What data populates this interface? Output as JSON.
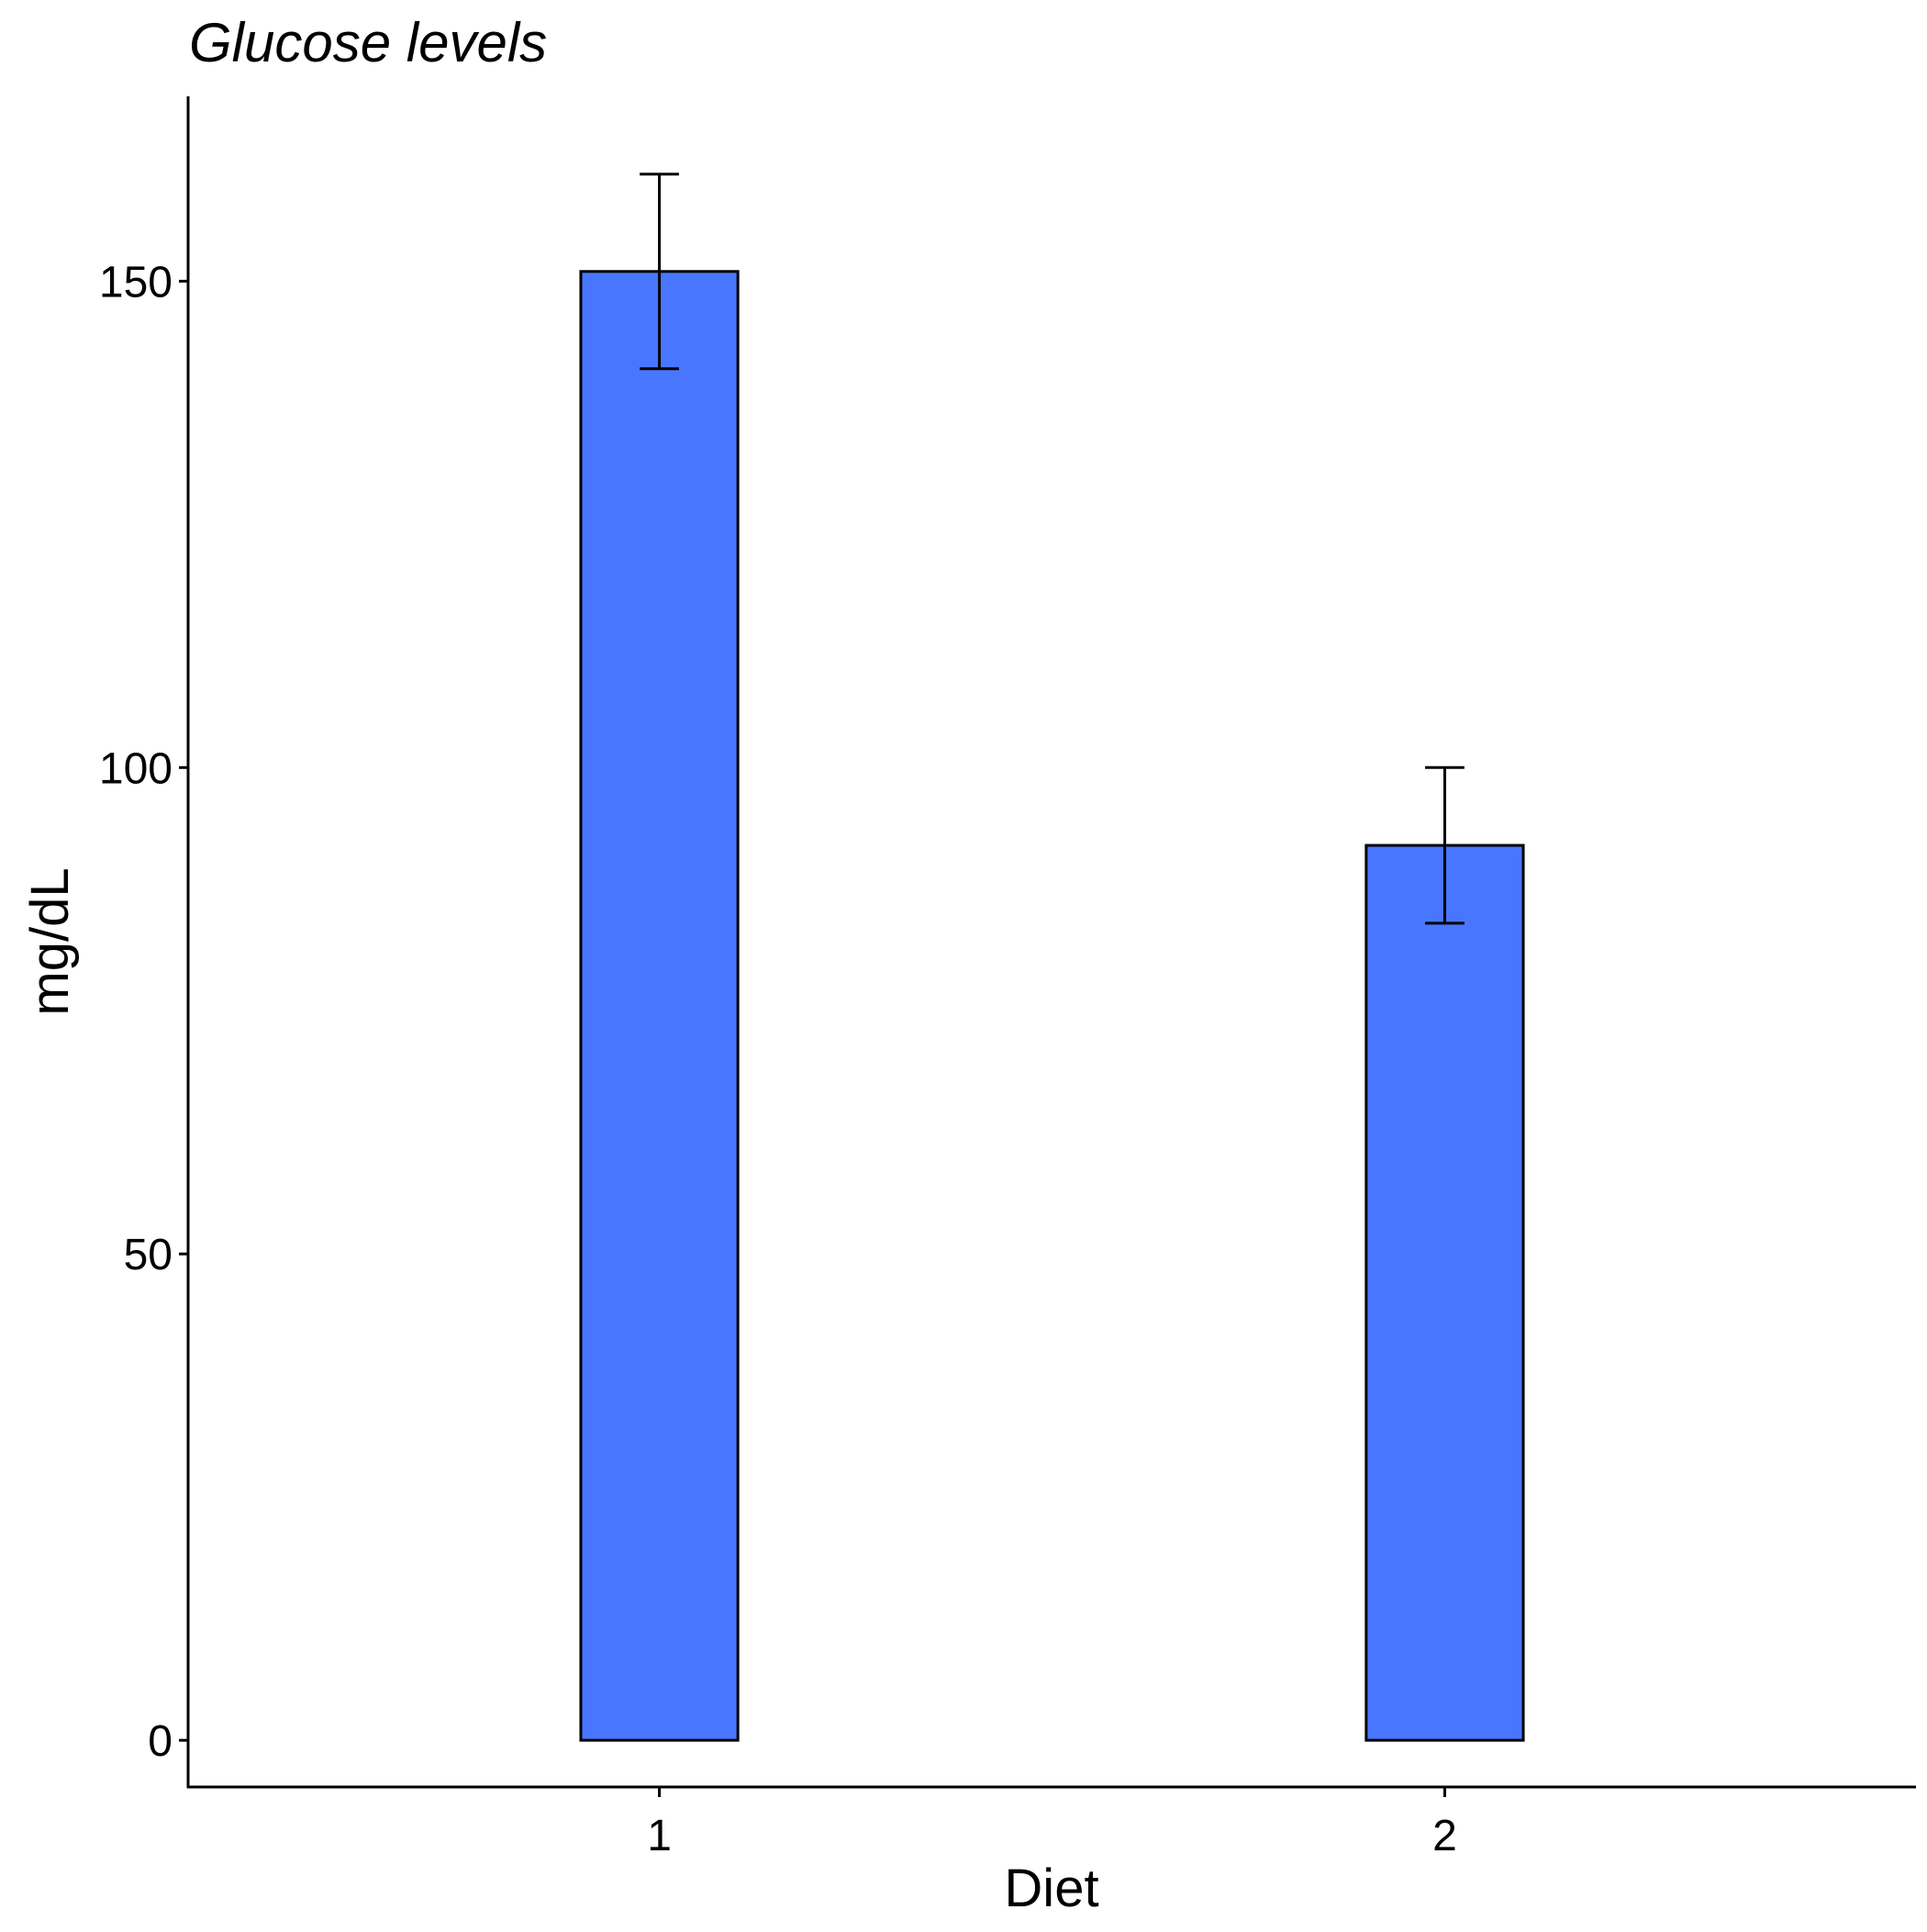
{
  "chart_data": {
    "type": "bar",
    "title": "Glucose levels",
    "xlabel": "Diet",
    "ylabel": "mg/dL",
    "categories": [
      "1",
      "2"
    ],
    "values": [
      151,
      92
    ],
    "error_low": [
      141,
      84
    ],
    "error_high": [
      161,
      100
    ],
    "ylim": [
      -4.8,
      169
    ],
    "yticks": [
      0,
      50,
      100,
      150
    ],
    "ytick_labels": [
      "0",
      "50",
      "100",
      "150"
    ],
    "grid": false,
    "bar_fill": "#4876FF",
    "bar_stroke": "#000000"
  }
}
